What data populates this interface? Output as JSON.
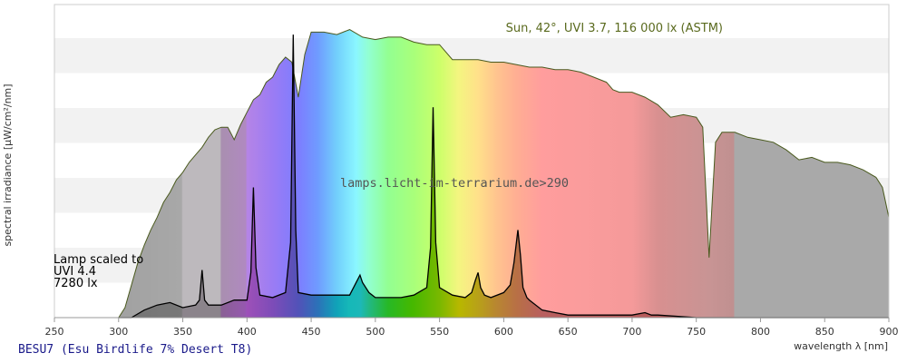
{
  "chart_data": {
    "type": "area",
    "ylabel": "spectral irradiance [µW/cm²/nm]",
    "xlabel": "wavelength λ [nm]",
    "xlim": [
      250,
      900
    ],
    "x_ticks": [
      250,
      300,
      350,
      400,
      450,
      500,
      550,
      600,
      650,
      700,
      750,
      800,
      850,
      900
    ],
    "grid": "horizontal alternating bands",
    "sun_label": "Sun, 42°, UVI 3.7, 116 000 lx (ASTM)",
    "lamp_label": [
      "Lamp scaled to",
      "UVI 4.4",
      "7280 lx"
    ],
    "watermark": "lamps.licht-im-terrarium.de>290",
    "footer": "BESU7 (Esu Birdlife 7% Desert T8)",
    "series": [
      {
        "name": "Sun, 42°, UVI 3.7, 116 000 lx (ASTM)",
        "color": "#4a5a1e",
        "x": [
          300,
          305,
          310,
          315,
          320,
          325,
          330,
          335,
          340,
          345,
          350,
          355,
          360,
          365,
          370,
          375,
          380,
          385,
          390,
          395,
          400,
          405,
          410,
          415,
          420,
          425,
          430,
          435,
          440,
          445,
          450,
          460,
          470,
          480,
          490,
          500,
          510,
          520,
          530,
          540,
          550,
          560,
          570,
          580,
          590,
          600,
          610,
          620,
          630,
          640,
          650,
          660,
          670,
          680,
          685,
          690,
          700,
          710,
          720,
          730,
          740,
          750,
          755,
          760,
          765,
          770,
          780,
          790,
          800,
          810,
          820,
          830,
          840,
          850,
          860,
          870,
          880,
          890,
          895,
          900
        ],
        "values": [
          0,
          4,
          13,
          22,
          29,
          35,
          40,
          46,
          50,
          55,
          58,
          62,
          65,
          68,
          72,
          75,
          76,
          76,
          71,
          77,
          82,
          87,
          89,
          94,
          96,
          101,
          104,
          102,
          88,
          105,
          114,
          114,
          113,
          115,
          112,
          111,
          112,
          112,
          110,
          109,
          109,
          103,
          103,
          103,
          102,
          102,
          101,
          100,
          100,
          99,
          99,
          98,
          96,
          94,
          91,
          90,
          90,
          88,
          85,
          80,
          81,
          80,
          76,
          24,
          70,
          74,
          74,
          72,
          71,
          70,
          67,
          63,
          64,
          62,
          62,
          61,
          59,
          56,
          52,
          40
        ]
      },
      {
        "name": "Lamp",
        "color": "#000000",
        "x": [
          300,
          310,
          320,
          330,
          340,
          350,
          360,
          363,
          365,
          367,
          370,
          380,
          390,
          400,
          403,
          405,
          407,
          410,
          420,
          430,
          434,
          436,
          438,
          440,
          450,
          460,
          470,
          480,
          485,
          488,
          490,
          495,
          500,
          510,
          520,
          530,
          540,
          543,
          545,
          547,
          550,
          560,
          570,
          575,
          578,
          580,
          582,
          585,
          590,
          600,
          605,
          608,
          611,
          613,
          615,
          618,
          620,
          630,
          640,
          650,
          700,
          710,
          715,
          720,
          750,
          800,
          850,
          900
        ],
        "values": [
          0,
          0,
          3,
          5,
          6,
          4,
          5,
          7,
          19,
          7,
          5,
          5,
          7,
          7,
          18,
          52,
          20,
          9,
          8,
          10,
          30,
          113,
          35,
          10,
          9,
          9,
          9,
          9,
          14,
          17,
          14,
          10,
          8,
          8,
          8,
          9,
          12,
          28,
          84,
          30,
          12,
          9,
          8,
          10,
          15,
          18,
          12,
          9,
          8,
          10,
          13,
          22,
          35,
          25,
          12,
          8,
          7,
          3,
          2,
          1,
          1,
          2,
          1,
          1,
          0,
          0,
          0,
          0
        ]
      }
    ]
  }
}
